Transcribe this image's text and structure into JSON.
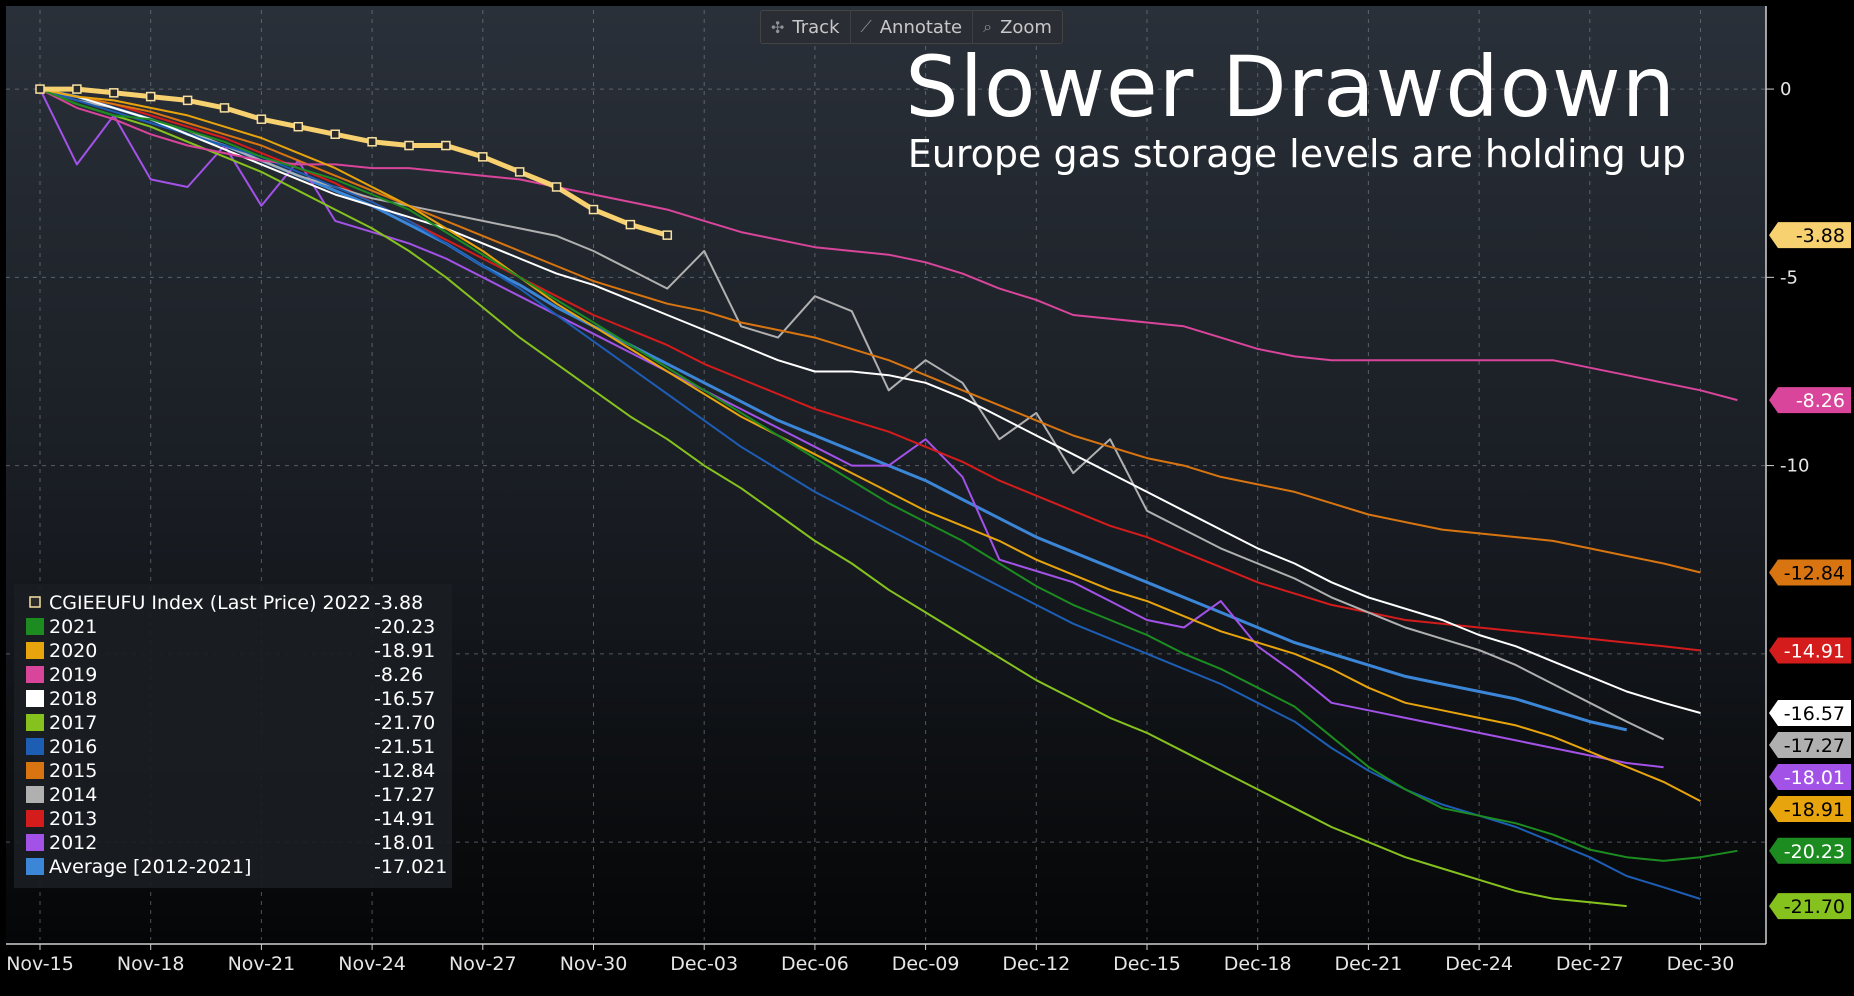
{
  "toolbar": {
    "track_label": "Track",
    "annotate_label": "Annotate",
    "zoom_label": "Zoom",
    "track_icon": "✣",
    "annotate_icon": "⟋",
    "zoom_icon": "⌕"
  },
  "chart_data": {
    "type": "line",
    "title": "Slower Drawdown",
    "subtitle": "Europe gas storage levels are holding up",
    "x_ticks": [
      "Nov-15",
      "Nov-18",
      "Nov-21",
      "Nov-24",
      "Nov-27",
      "Nov-30",
      "Dec-03",
      "Dec-06",
      "Dec-09",
      "Dec-12",
      "Dec-15",
      "Dec-18",
      "Dec-21",
      "Dec-24",
      "Dec-27",
      "Dec-30"
    ],
    "x_tick_days": [
      0,
      3,
      6,
      9,
      12,
      15,
      18,
      21,
      24,
      27,
      30,
      33,
      36,
      39,
      42,
      45
    ],
    "y_ticks": [
      0,
      -5,
      -10
    ],
    "y_tick_labels": [
      "0",
      "-5",
      "-10"
    ],
    "ylim": [
      -22.6,
      2.1
    ],
    "xlim": [
      0,
      46.5
    ],
    "legend_position": "bottom-left",
    "series": [
      {
        "name": "CGIEEUFU Index (Last Price) 2022",
        "label": "CGIEEUFU Index (Last Price) 2022",
        "legend_value": "-3.88",
        "last": -3.88,
        "color": "#f7d070",
        "badge_text": "#000000",
        "marker": true,
        "width": 5,
        "values": [
          0,
          0,
          -0.1,
          -0.2,
          -0.3,
          -0.5,
          -0.8,
          -1.0,
          -1.2,
          -1.4,
          -1.5,
          -1.5,
          -1.8,
          -2.2,
          -2.6,
          -3.2,
          -3.6,
          -3.88
        ]
      },
      {
        "name": "2021",
        "legend_value": "-20.23",
        "last": -20.23,
        "color": "#1c8c21",
        "badge_text": "#ffffff",
        "values": [
          0,
          -0.4,
          -0.7,
          -0.8,
          -1.1,
          -1.4,
          -1.8,
          -2.1,
          -2.4,
          -2.8,
          -3.2,
          -3.8,
          -4.4,
          -5.0,
          -5.6,
          -6.2,
          -6.8,
          -7.4,
          -8.0,
          -8.6,
          -9.2,
          -9.8,
          -10.4,
          -11.0,
          -11.5,
          -12.0,
          -12.6,
          -13.2,
          -13.7,
          -14.1,
          -14.5,
          -15.0,
          -15.4,
          -15.9,
          -16.4,
          -17.2,
          -18.0,
          -18.6,
          -19.1,
          -19.3,
          -19.5,
          -19.8,
          -20.2,
          -20.4,
          -20.5,
          -20.4,
          -20.23
        ]
      },
      {
        "name": "2020",
        "legend_value": "-18.91",
        "last": -18.91,
        "color": "#e8a40c",
        "badge_text": "#000000",
        "values": [
          0,
          -0.2,
          -0.3,
          -0.5,
          -0.7,
          -1.0,
          -1.3,
          -1.7,
          -2.1,
          -2.6,
          -3.1,
          -3.7,
          -4.3,
          -5.0,
          -5.7,
          -6.3,
          -6.9,
          -7.5,
          -8.1,
          -8.7,
          -9.2,
          -9.7,
          -10.2,
          -10.7,
          -11.2,
          -11.6,
          -12.0,
          -12.5,
          -12.9,
          -13.3,
          -13.6,
          -14.0,
          -14.4,
          -14.7,
          -15.0,
          -15.4,
          -15.9,
          -16.3,
          -16.5,
          -16.7,
          -16.9,
          -17.2,
          -17.6,
          -18.0,
          -18.4,
          -18.91
        ]
      },
      {
        "name": "2019",
        "legend_value": "-8.26",
        "last": -8.26,
        "color": "#d8459a",
        "badge_text": "#ffffff",
        "values": [
          0,
          -0.5,
          -0.8,
          -1.2,
          -1.5,
          -1.7,
          -1.9,
          -2.0,
          -2.0,
          -2.1,
          -2.1,
          -2.2,
          -2.3,
          -2.4,
          -2.6,
          -2.8,
          -3.0,
          -3.2,
          -3.5,
          -3.8,
          -4.0,
          -4.2,
          -4.3,
          -4.4,
          -4.6,
          -4.9,
          -5.3,
          -5.6,
          -6.0,
          -6.1,
          -6.2,
          -6.3,
          -6.6,
          -6.9,
          -7.1,
          -7.2,
          -7.2,
          -7.2,
          -7.2,
          -7.2,
          -7.2,
          -7.2,
          -7.4,
          -7.6,
          -7.8,
          -8.0,
          -8.26
        ]
      },
      {
        "name": "2018",
        "legend_value": "-16.57",
        "last": -16.57,
        "color": "#ffffff",
        "badge_text": "#000000",
        "values": [
          0,
          -0.2,
          -0.5,
          -0.8,
          -1.2,
          -1.6,
          -2.0,
          -2.4,
          -2.8,
          -3.1,
          -3.4,
          -3.7,
          -4.1,
          -4.5,
          -4.9,
          -5.2,
          -5.6,
          -6.0,
          -6.4,
          -6.8,
          -7.2,
          -7.5,
          -7.5,
          -7.6,
          -7.8,
          -8.2,
          -8.7,
          -9.2,
          -9.7,
          -10.2,
          -10.7,
          -11.2,
          -11.7,
          -12.2,
          -12.6,
          -13.1,
          -13.5,
          -13.8,
          -14.1,
          -14.5,
          -14.8,
          -15.2,
          -15.6,
          -16.0,
          -16.3,
          -16.57
        ]
      },
      {
        "name": "2017",
        "legend_value": "-21.70",
        "last": -21.7,
        "color": "#86c21e",
        "badge_text": "#000000",
        "values": [
          0,
          -0.4,
          -0.7,
          -1.0,
          -1.4,
          -1.8,
          -2.2,
          -2.7,
          -3.2,
          -3.7,
          -4.3,
          -5.0,
          -5.8,
          -6.6,
          -7.3,
          -8.0,
          -8.7,
          -9.3,
          -10.0,
          -10.6,
          -11.3,
          -12.0,
          -12.6,
          -13.3,
          -13.9,
          -14.5,
          -15.1,
          -15.7,
          -16.2,
          -16.7,
          -17.1,
          -17.6,
          -18.1,
          -18.6,
          -19.1,
          -19.6,
          -20.0,
          -20.4,
          -20.7,
          -21.0,
          -21.3,
          -21.5,
          -21.6,
          -21.7
        ]
      },
      {
        "name": "2016",
        "legend_value": "-21.51",
        "last": -21.51,
        "color": "#1d5db3",
        "badge_text": "#ffffff",
        "values": [
          0,
          -0.3,
          -0.6,
          -0.9,
          -1.2,
          -1.5,
          -1.8,
          -2.2,
          -2.6,
          -3.0,
          -3.5,
          -4.1,
          -4.7,
          -5.3,
          -6.0,
          -6.7,
          -7.4,
          -8.1,
          -8.8,
          -9.5,
          -10.1,
          -10.7,
          -11.2,
          -11.7,
          -12.2,
          -12.7,
          -13.2,
          -13.7,
          -14.2,
          -14.6,
          -15.0,
          -15.4,
          -15.8,
          -16.3,
          -16.8,
          -17.5,
          -18.1,
          -18.6,
          -19.0,
          -19.3,
          -19.6,
          -20.0,
          -20.4,
          -20.9,
          -21.2,
          -21.51
        ]
      },
      {
        "name": "2015",
        "legend_value": "-12.84",
        "last": -12.84,
        "color": "#d97510",
        "badge_text": "#000000",
        "values": [
          0,
          -0.2,
          -0.4,
          -0.6,
          -0.9,
          -1.2,
          -1.5,
          -1.9,
          -2.3,
          -2.7,
          -3.1,
          -3.5,
          -3.9,
          -4.3,
          -4.7,
          -5.1,
          -5.4,
          -5.7,
          -5.9,
          -6.2,
          -6.4,
          -6.6,
          -6.9,
          -7.2,
          -7.6,
          -8.0,
          -8.4,
          -8.8,
          -9.2,
          -9.5,
          -9.8,
          -10.0,
          -10.3,
          -10.5,
          -10.7,
          -11.0,
          -11.3,
          -11.5,
          -11.7,
          -11.8,
          -11.9,
          -12.0,
          -12.2,
          -12.4,
          -12.6,
          -12.84
        ]
      },
      {
        "name": "2014",
        "legend_value": "-17.27",
        "last": -17.27,
        "color": "#b0b0b0",
        "badge_text": "#000000",
        "values": [
          0,
          -0.3,
          -0.5,
          -0.8,
          -1.1,
          -1.5,
          -1.9,
          -2.3,
          -2.6,
          -2.9,
          -3.1,
          -3.3,
          -3.5,
          -3.7,
          -3.9,
          -4.3,
          -4.8,
          -5.3,
          -4.3,
          -6.3,
          -6.6,
          -5.5,
          -5.9,
          -8.0,
          -7.2,
          -7.8,
          -9.3,
          -8.6,
          -10.2,
          -9.3,
          -11.2,
          -11.7,
          -12.2,
          -12.6,
          -13.0,
          -13.5,
          -13.9,
          -14.3,
          -14.6,
          -14.9,
          -15.3,
          -15.8,
          -16.3,
          -16.8,
          -17.27
        ]
      },
      {
        "name": "2013",
        "legend_value": "-14.91",
        "last": -14.91,
        "color": "#d41c1c",
        "badge_text": "#ffffff",
        "values": [
          0,
          -0.2,
          -0.4,
          -0.7,
          -1.0,
          -1.3,
          -1.7,
          -2.1,
          -2.5,
          -3.0,
          -3.5,
          -4.0,
          -4.5,
          -5.0,
          -5.5,
          -6.0,
          -6.4,
          -6.8,
          -7.3,
          -7.7,
          -8.1,
          -8.5,
          -8.8,
          -9.1,
          -9.5,
          -9.9,
          -10.4,
          -10.8,
          -11.2,
          -11.6,
          -11.9,
          -12.3,
          -12.7,
          -13.1,
          -13.4,
          -13.7,
          -13.9,
          -14.1,
          -14.2,
          -14.3,
          -14.4,
          -14.5,
          -14.6,
          -14.7,
          -14.8,
          -14.91
        ]
      },
      {
        "name": "2012",
        "legend_value": "-18.01",
        "last": -18.01,
        "color": "#a352e8",
        "badge_text": "#ffffff",
        "values": [
          0,
          -2.0,
          -0.7,
          -2.4,
          -2.6,
          -1.5,
          -3.1,
          -1.9,
          -3.5,
          -3.8,
          -4.1,
          -4.5,
          -5.0,
          -5.5,
          -6.0,
          -6.5,
          -7.0,
          -7.5,
          -8.0,
          -8.5,
          -9.0,
          -9.5,
          -10.0,
          -10.0,
          -9.3,
          -10.3,
          -12.5,
          -12.8,
          -13.1,
          -13.6,
          -14.1,
          -14.3,
          -13.6,
          -14.8,
          -15.5,
          -16.3,
          -16.5,
          -16.7,
          -16.9,
          -17.1,
          -17.3,
          -17.5,
          -17.7,
          -17.9,
          -18.01
        ]
      },
      {
        "name": "Average [2012-2021]",
        "label": "Average  [2012-2021]",
        "legend_value": "-17.021",
        "last": -17.021,
        "color": "#3c86d8",
        "badge_text": "#ffffff",
        "width": 3,
        "values": [
          0,
          -0.2,
          -0.5,
          -0.8,
          -1.2,
          -1.5,
          -1.9,
          -2.3,
          -2.7,
          -3.1,
          -3.6,
          -4.1,
          -4.7,
          -5.2,
          -5.8,
          -6.3,
          -6.8,
          -7.3,
          -7.8,
          -8.3,
          -8.8,
          -9.2,
          -9.6,
          -10.0,
          -10.4,
          -10.9,
          -11.4,
          -11.9,
          -12.3,
          -12.7,
          -13.1,
          -13.5,
          -13.9,
          -14.3,
          -14.7,
          -15.0,
          -15.3,
          -15.6,
          -15.8,
          -16.0,
          -16.2,
          -16.5,
          -16.8,
          -17.021
        ]
      }
    ],
    "badges": [
      {
        "text": "-3.88",
        "value": -3.88,
        "color": "#f7d070",
        "text_color": "#000000"
      },
      {
        "text": "-8.26",
        "value": -8.26,
        "color": "#d8459a",
        "text_color": "#ffffff"
      },
      {
        "text": "-12.84",
        "value": -12.84,
        "color": "#d97510",
        "text_color": "#000000"
      },
      {
        "text": "-14.91",
        "value": -14.91,
        "color": "#d41c1c",
        "text_color": "#ffffff"
      },
      {
        "text": "-16.57",
        "value": -16.57,
        "color": "#ffffff",
        "text_color": "#000000"
      },
      {
        "text": "-17.27",
        "value": -17.27,
        "color": "#b0b0b0",
        "text_color": "#000000"
      },
      {
        "text": "-18.01",
        "value": -18.01,
        "color": "#a352e8",
        "text_color": "#ffffff"
      },
      {
        "text": "-18.91",
        "value": -18.91,
        "color": "#e8a40c",
        "text_color": "#000000"
      },
      {
        "text": "-20.23",
        "value": -20.23,
        "color": "#1c8c21",
        "text_color": "#ffffff"
      },
      {
        "text": "-21.70",
        "value": -21.7,
        "color": "#86c21e",
        "text_color": "#000000"
      }
    ]
  }
}
